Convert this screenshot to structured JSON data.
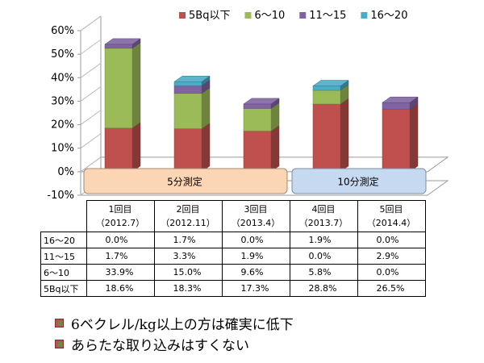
{
  "chart_data": {
    "type": "stacked-bar-3d",
    "categories_line1": [
      "1回目",
      "2回目",
      "3回目",
      "4回目",
      "5回目"
    ],
    "categories_line2": [
      "（2012.7）",
      "（2012.11）",
      "（2013.4）",
      "（2013.7）",
      "（2014.4）"
    ],
    "series": [
      {
        "name": "5Bq以下",
        "color": "#c0504d",
        "values": [
          18.6,
          18.3,
          17.3,
          28.8,
          26.5
        ]
      },
      {
        "name": "6～10",
        "color": "#9bbb59",
        "values": [
          33.9,
          15.0,
          9.6,
          5.8,
          0.0
        ]
      },
      {
        "name": "11～15",
        "color": "#8064a2",
        "values": [
          1.7,
          3.3,
          1.9,
          0.0,
          2.9
        ]
      },
      {
        "name": "16～20",
        "color": "#4bacc6",
        "values": [
          0.0,
          1.7,
          0.0,
          1.9,
          0.0
        ]
      }
    ],
    "ylim": [
      -10,
      60
    ],
    "yticks": [
      -10,
      0,
      10,
      20,
      30,
      40,
      50,
      60
    ],
    "ytick_labels": [
      "-10%",
      "0%",
      "10%",
      "20%",
      "30%",
      "40%",
      "50%",
      "60%"
    ],
    "legend_position": "top",
    "grid": false,
    "group_labels": [
      {
        "text": "5分測定",
        "covers": [
          0,
          1,
          2
        ],
        "color": "#fcd5b4"
      },
      {
        "text": "10分測定",
        "covers": [
          3,
          4
        ],
        "color": "#c5d9f1"
      }
    ]
  },
  "table": {
    "rows": [
      {
        "label": "16～20",
        "values": [
          "0.0%",
          "1.7%",
          "0.0%",
          "1.9%",
          "0.0%"
        ]
      },
      {
        "label": "11～15",
        "values": [
          "1.7%",
          "3.3%",
          "1.9%",
          "0.0%",
          "2.9%"
        ]
      },
      {
        "label": "6～10",
        "values": [
          "33.9%",
          "15.0%",
          "9.6%",
          "5.8%",
          "0.0%"
        ]
      },
      {
        "label": "5Bq以下",
        "values": [
          "18.6%",
          "18.3%",
          "17.3%",
          "28.8%",
          "26.5%"
        ]
      }
    ]
  },
  "bullets": [
    "6ベクレル/kg以上の方は確実に低下",
    "あらたな取り込みはすくない"
  ]
}
